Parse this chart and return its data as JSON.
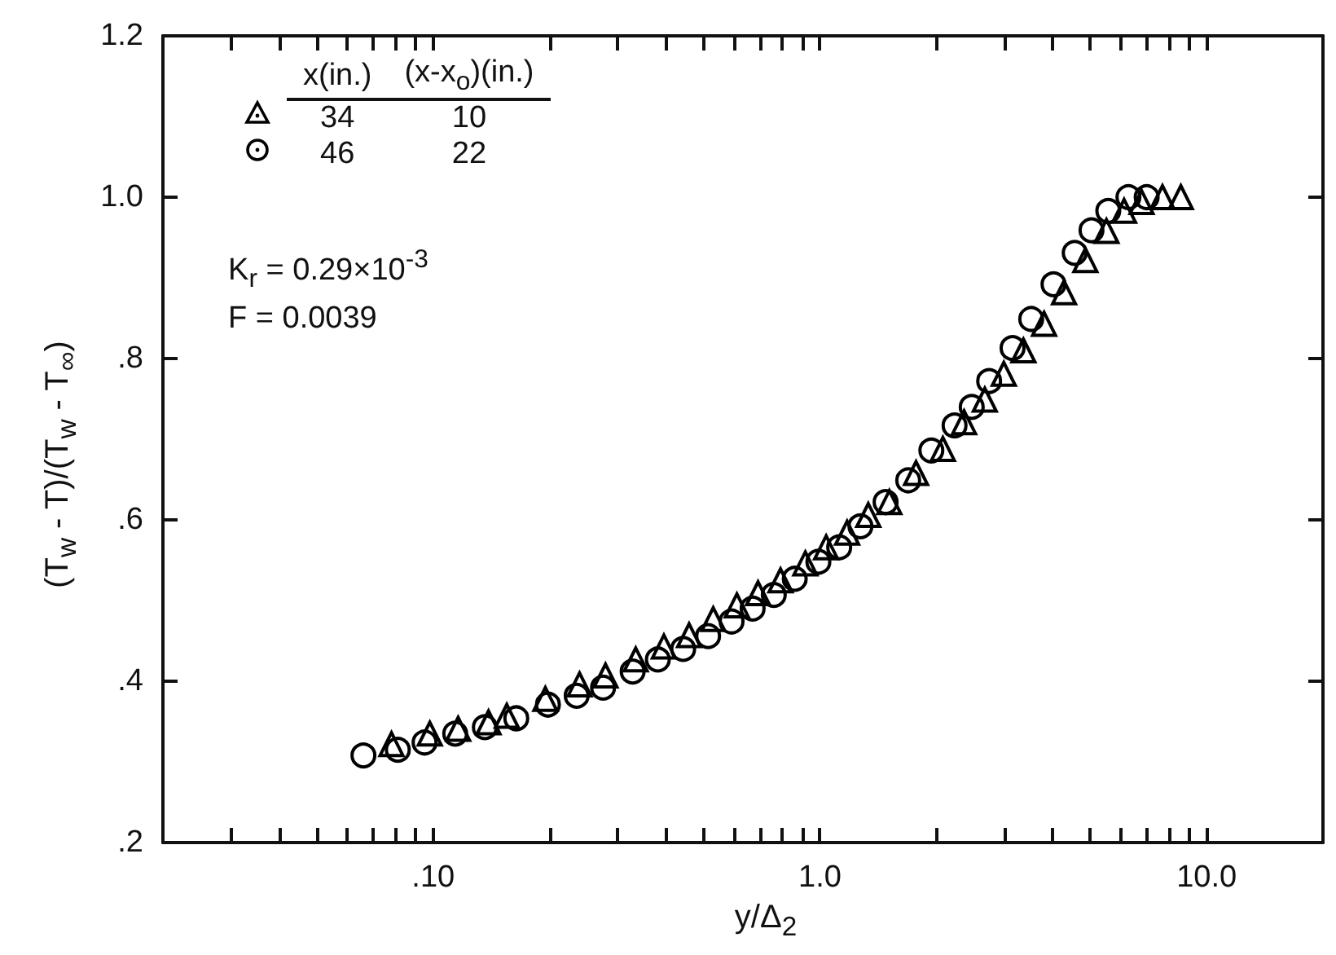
{
  "chart_data": {
    "type": "scatter",
    "xlabel": "y/Δ$_{2}$",
    "ylabel": "(T$_{w}$ - T)/(T$_{w}$ - T$_{∞}$)",
    "legend_title": "x(in.)",
    "legend": "top left",
    "log": "x",
    "grid": false,
    "xlim": [
      0.02,
      20
    ],
    "ylim": [
      0.2,
      1.2
    ],
    "xticks": [
      {
        "value": 0.03,
        "label": null
      },
      {
        "value": 0.04,
        "label": null
      },
      {
        "value": 0.05,
        "label": null
      },
      {
        "value": 0.06,
        "label": null
      },
      {
        "value": 0.07,
        "label": null
      },
      {
        "value": 0.08,
        "label": null
      },
      {
        "value": 0.09,
        "label": null
      },
      {
        "value": 0.1,
        "label": ".10"
      },
      {
        "value": 0.2,
        "label": null
      },
      {
        "value": 0.3,
        "label": null
      },
      {
        "value": 0.4,
        "label": null
      },
      {
        "value": 0.5,
        "label": null
      },
      {
        "value": 0.6,
        "label": null
      },
      {
        "value": 0.7,
        "label": null
      },
      {
        "value": 0.8,
        "label": null
      },
      {
        "value": 0.9,
        "label": null
      },
      {
        "value": 1,
        "label": "1.0"
      },
      {
        "value": 2,
        "label": null
      },
      {
        "value": 3,
        "label": null
      },
      {
        "value": 4,
        "label": null
      },
      {
        "value": 5,
        "label": null
      },
      {
        "value": 6,
        "label": null
      },
      {
        "value": 7,
        "label": null
      },
      {
        "value": 8,
        "label": null
      },
      {
        "value": 9,
        "label": null
      },
      {
        "value": 10,
        "label": "10.0"
      }
    ],
    "yticks": [
      {
        "value": 0.2,
        "label": ".2"
      },
      {
        "value": 0.4,
        "label": ".4"
      },
      {
        "value": 0.6,
        "label": ".6"
      },
      {
        "value": 0.8,
        "label": ".8"
      },
      {
        "value": 1.0,
        "label": "1.0"
      },
      {
        "value": 1.2,
        "label": "1.2"
      }
    ],
    "annotations": [
      "(x-x$_{o}$)(in.)",
      "10",
      "22",
      "K$_{r}$ = 0.29×10$^{-3}$",
      "F = 0.0039"
    ],
    "series": [
      {
        "name": "34",
        "color": "#000000",
        "marker": "triangle",
        "x": [
          0.078,
          0.098,
          0.116,
          0.139,
          0.155,
          0.195,
          0.239,
          0.279,
          0.334,
          0.395,
          0.459,
          0.53,
          0.61,
          0.692,
          0.791,
          0.917,
          1.038,
          1.176,
          1.334,
          1.512,
          1.773,
          2.08,
          2.36,
          2.67,
          2.99,
          3.36,
          3.8,
          4.28,
          4.86,
          5.51,
          6.12,
          6.79,
          7.69,
          8.58
        ],
        "values": [
          0.322,
          0.335,
          0.341,
          0.349,
          0.357,
          0.378,
          0.396,
          0.407,
          0.427,
          0.443,
          0.457,
          0.477,
          0.494,
          0.509,
          0.525,
          0.546,
          0.566,
          0.584,
          0.606,
          0.622,
          0.658,
          0.688,
          0.721,
          0.749,
          0.781,
          0.81,
          0.843,
          0.882,
          0.922,
          0.958,
          0.983,
          0.994,
          1.0,
          1.0
        ]
      },
      {
        "name": "46",
        "color": "#000000",
        "marker": "circle",
        "x": [
          0.066,
          0.081,
          0.095,
          0.114,
          0.136,
          0.164,
          0.198,
          0.235,
          0.275,
          0.328,
          0.381,
          0.443,
          0.514,
          0.591,
          0.67,
          0.76,
          0.861,
          0.991,
          1.122,
          1.273,
          1.479,
          1.692,
          1.942,
          2.23,
          2.47,
          2.74,
          3.15,
          3.52,
          4.02,
          4.56,
          5.04,
          5.57,
          6.28,
          7.0
        ],
        "values": [
          0.308,
          0.315,
          0.324,
          0.335,
          0.343,
          0.354,
          0.371,
          0.382,
          0.392,
          0.412,
          0.427,
          0.44,
          0.456,
          0.474,
          0.49,
          0.507,
          0.527,
          0.548,
          0.566,
          0.592,
          0.622,
          0.649,
          0.686,
          0.717,
          0.74,
          0.772,
          0.813,
          0.849,
          0.892,
          0.931,
          0.959,
          0.983,
          1.0,
          1.0
        ]
      }
    ]
  }
}
